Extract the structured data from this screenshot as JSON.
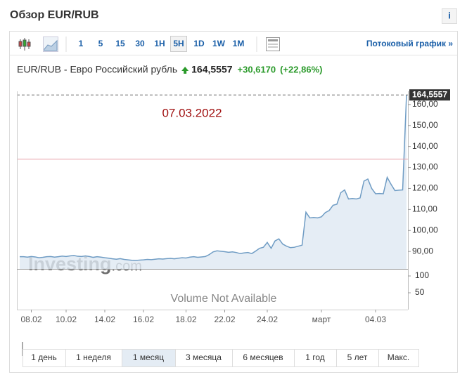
{
  "header": {
    "title": "Обзор EUR/RUB",
    "info": "i"
  },
  "toolbar": {
    "intervals": [
      "1",
      "5",
      "15",
      "30",
      "1H",
      "5H",
      "1D",
      "1W",
      "1M"
    ],
    "active": "5H",
    "stream_link": "Потоковый график »"
  },
  "quote": {
    "name": "EUR/RUB - Евро Российский рубль",
    "last": "164,5557",
    "change": "+30,6170",
    "change_pct": "(+22,86%)"
  },
  "chart_data": {
    "type": "area",
    "annotation": "07.03.2022",
    "categories": [
      null,
      null,
      null,
      "08.02",
      null,
      null,
      null,
      null,
      null,
      null,
      null,
      null,
      "10.02",
      null,
      null,
      null,
      null,
      null,
      null,
      null,
      null,
      null,
      "14.02",
      null,
      null,
      null,
      null,
      null,
      null,
      null,
      null,
      null,
      "16.02",
      null,
      null,
      null,
      null,
      null,
      null,
      null,
      null,
      null,
      null,
      "18.02",
      null,
      null,
      null,
      null,
      null,
      null,
      null,
      null,
      null,
      "22.02",
      null,
      null,
      null,
      null,
      null,
      null,
      null,
      null,
      null,
      null,
      "24.02",
      null,
      null,
      null,
      null,
      null,
      null,
      null,
      null,
      null,
      null,
      null,
      null,
      null,
      "март",
      null,
      null,
      null,
      null,
      null,
      null,
      null,
      null,
      null,
      null,
      null,
      null,
      null,
      "04.03",
      null,
      null,
      null,
      null,
      null,
      null,
      null,
      null
    ],
    "values": [
      87.5,
      87.5,
      87.3,
      87.6,
      87.4,
      87.0,
      87.2,
      87.5,
      87.6,
      87.3,
      87.5,
      87.8,
      87.6,
      87.9,
      88.1,
      87.7,
      87.6,
      87.9,
      87.6,
      87.2,
      87.5,
      87.3,
      87.0,
      86.8,
      86.5,
      86.3,
      86.6,
      86.2,
      86.0,
      85.8,
      85.7,
      85.9,
      86.0,
      86.2,
      86.1,
      86.3,
      86.5,
      86.4,
      86.6,
      86.7,
      86.5,
      86.8,
      87.0,
      86.9,
      87.3,
      87.5,
      87.2,
      87.4,
      87.6,
      88.5,
      89.8,
      90.3,
      90.1,
      89.9,
      89.6,
      89.8,
      89.5,
      89.0,
      89.3,
      89.5,
      89.0,
      90.2,
      91.5,
      92.0,
      94.3,
      91.5,
      95.0,
      96.0,
      93.5,
      92.5,
      91.8,
      92.0,
      92.5,
      93.0,
      108.7,
      106.0,
      106.2,
      106.0,
      106.5,
      108.5,
      109.5,
      112.0,
      112.5,
      118.0,
      119.3,
      115.0,
      115.2,
      115.0,
      115.5,
      123.5,
      124.5,
      120.0,
      117.5,
      117.6,
      117.5,
      125.3,
      122.0,
      119.0,
      119.2,
      119.3,
      164.5557
    ],
    "last_label": "164,5557",
    "prev_close": 133.9387,
    "color": "#6f9cc4",
    "fill": "#dfe9f2",
    "ylim": [
      81.7,
      166.3
    ],
    "yticks": [
      {
        "value": 90,
        "label": "90,00"
      },
      {
        "value": 100,
        "label": "100,00"
      },
      {
        "value": 110,
        "label": "110,00"
      },
      {
        "value": 120,
        "label": "120,00"
      },
      {
        "value": 130,
        "label": "130,00"
      },
      {
        "value": 140,
        "label": "140,00"
      },
      {
        "value": 150,
        "label": "150,00"
      },
      {
        "value": 160,
        "label": "160,00"
      }
    ],
    "grid": false,
    "watermark": [
      "Investing",
      ".com"
    ],
    "volume": {
      "text": "Volume Not Available",
      "ylim": [
        0,
        121
      ],
      "yticks": [
        100,
        50
      ]
    }
  },
  "ranges": {
    "items": [
      "1 день",
      "1 неделя",
      "1 месяц",
      "3 месяца",
      "6 месяцев",
      "1 год",
      "5 лет",
      "Макс."
    ],
    "active": "1 месяц"
  }
}
